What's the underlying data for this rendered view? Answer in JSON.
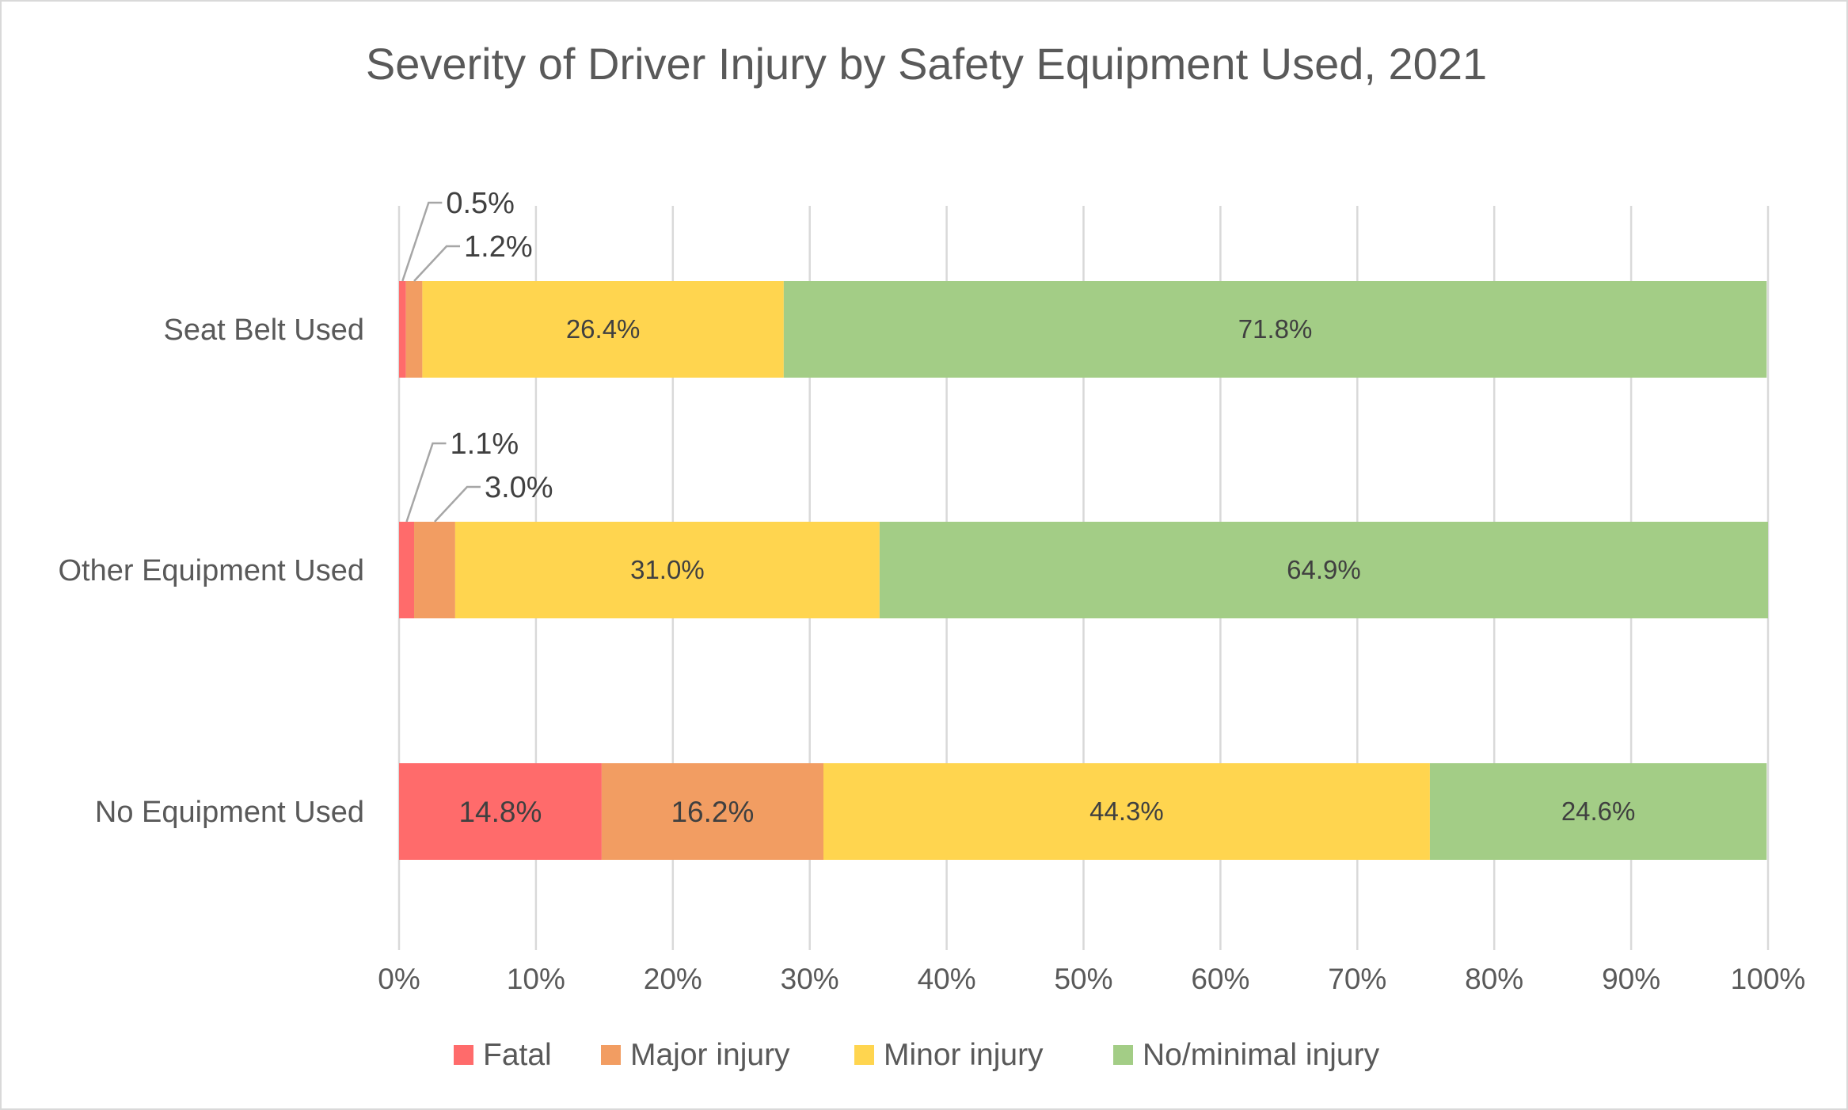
{
  "chart_data": {
    "type": "bar",
    "orientation": "horizontal",
    "stacked": "percent",
    "title": "Severity of Driver Injury by Safety Equipment Used, 2021",
    "categories": [
      "Seat Belt Used",
      "Other Equipment Used",
      "No Equipment Used"
    ],
    "series": [
      {
        "name": "Fatal",
        "color": "#ff6b6b",
        "values": [
          0.5,
          1.1,
          14.8
        ],
        "labels": [
          "0.5%",
          "1.1%",
          "14.8%"
        ]
      },
      {
        "name": "Major injury",
        "color": "#f29d62",
        "values": [
          1.2,
          3.0,
          16.2
        ],
        "labels": [
          "1.2%",
          "3.0%",
          "16.2%"
        ]
      },
      {
        "name": "Minor injury",
        "color": "#ffd54f",
        "values": [
          26.4,
          31.0,
          44.3
        ],
        "labels": [
          "26.4%",
          "31.0%",
          "44.3%"
        ]
      },
      {
        "name": "No/minimal injury",
        "color": "#a3cd86",
        "values": [
          71.8,
          64.9,
          24.6
        ],
        "labels": [
          "71.8%",
          "64.9%",
          "24.6%"
        ]
      }
    ],
    "xlim": [
      0,
      100
    ],
    "x_ticks": [
      "0%",
      "10%",
      "20%",
      "30%",
      "40%",
      "50%",
      "60%",
      "70%",
      "80%",
      "90%",
      "100%"
    ],
    "grid": "vertical",
    "legend_position": "bottom"
  }
}
